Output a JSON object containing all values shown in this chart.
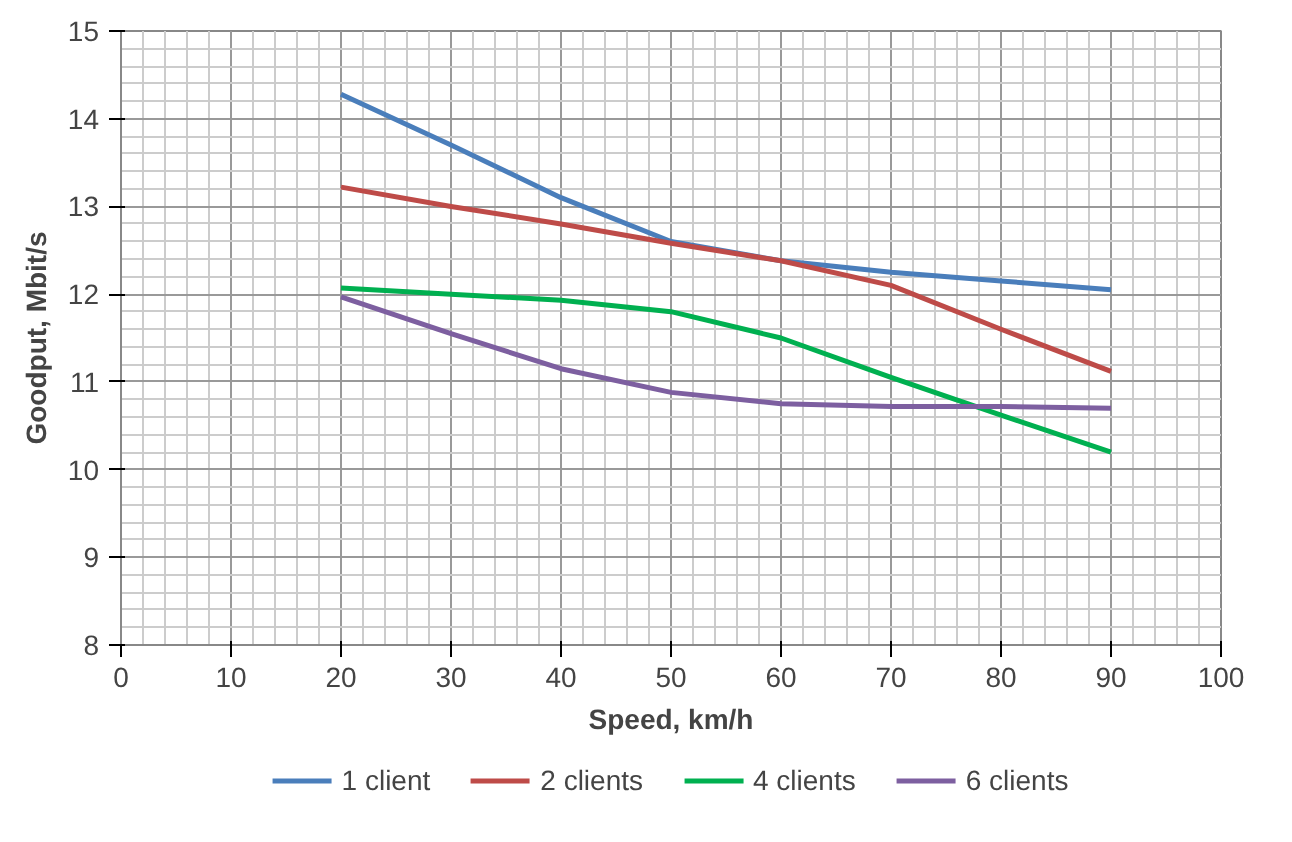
{
  "chart_data": {
    "type": "line",
    "xlabel": "Speed, km/h",
    "ylabel": "Goodput, Mbit/s",
    "x": [
      20,
      30,
      40,
      50,
      60,
      70,
      80,
      90
    ],
    "series": [
      {
        "name": "1 client",
        "color": "#4a7ebb",
        "values": [
          14.28,
          13.7,
          13.1,
          12.6,
          12.38,
          12.25,
          12.15,
          12.05
        ]
      },
      {
        "name": "2 clients",
        "color": "#be4b48",
        "values": [
          13.22,
          13.0,
          12.8,
          12.58,
          12.38,
          12.1,
          11.6,
          11.12
        ]
      },
      {
        "name": "4 clients",
        "color": "#00b050",
        "values": [
          12.07,
          12.0,
          11.93,
          11.8,
          11.5,
          11.05,
          10.62,
          10.2
        ]
      },
      {
        "name": "6 clients",
        "color": "#7d5fa0",
        "values": [
          11.97,
          11.55,
          11.15,
          10.88,
          10.75,
          10.72,
          10.72,
          10.7
        ]
      }
    ],
    "xlim": [
      0,
      100
    ],
    "xticks": [
      0,
      10,
      20,
      30,
      40,
      50,
      60,
      70,
      80,
      90,
      100
    ],
    "ylim": [
      8,
      15
    ],
    "yticks": [
      8,
      9,
      10,
      11,
      12,
      13,
      14,
      15
    ],
    "grid": true,
    "legend": "bottom",
    "marker": "none",
    "line_style": "solid"
  }
}
